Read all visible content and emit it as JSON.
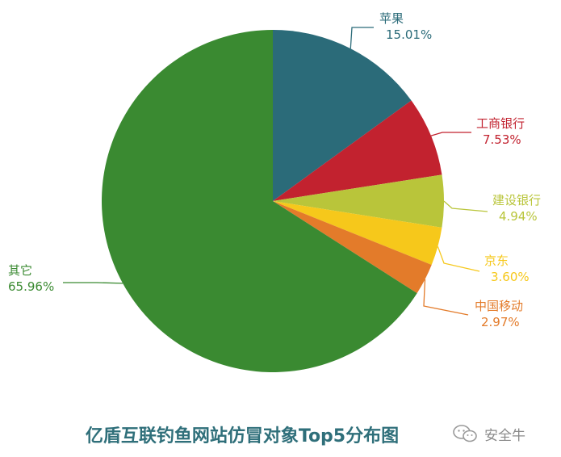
{
  "chart_data": {
    "type": "pie",
    "title": "亿盾互联钓鱼网站仿冒对象Top5分布图",
    "slices": [
      {
        "label": "苹果",
        "value": 15.01,
        "value_label": "15.01%",
        "color": "#2b6b79"
      },
      {
        "label": "工商银行",
        "value": 7.53,
        "value_label": "7.53%",
        "color": "#c2222f"
      },
      {
        "label": "建设银行",
        "value": 4.94,
        "value_label": "4.94%",
        "color": "#b9c53a"
      },
      {
        "label": "京东",
        "value": 3.6,
        "value_label": "3.60%",
        "color": "#f6c81b"
      },
      {
        "label": "中国移动",
        "value": 2.97,
        "value_label": "2.97%",
        "color": "#e37b2a"
      },
      {
        "label": "其它",
        "value": 65.96,
        "value_label": "65.96%",
        "color": "#3a8a31"
      }
    ],
    "start": "top",
    "direction": "clockwise"
  },
  "watermark": {
    "text": "安全牛",
    "icon": "wechat-icon"
  }
}
